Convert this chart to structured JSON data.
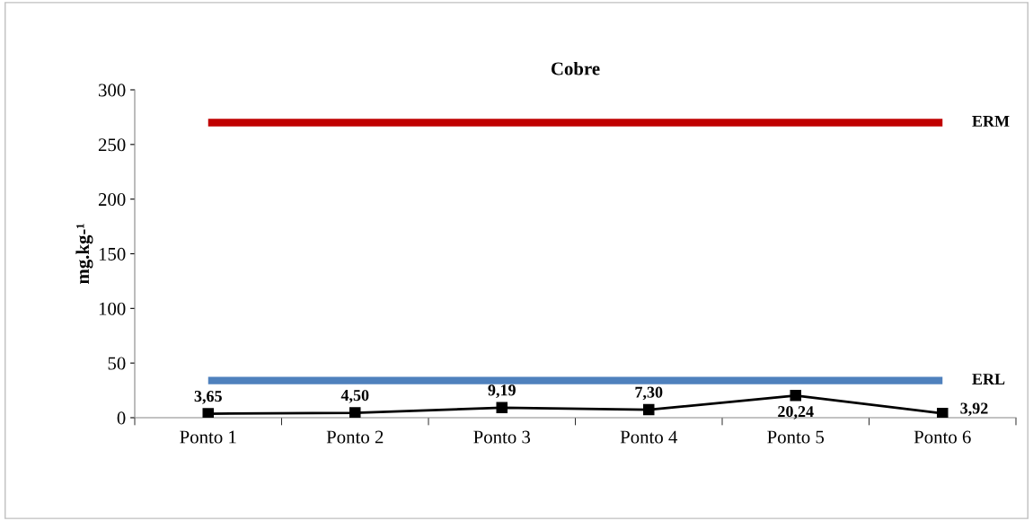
{
  "chart_data": {
    "type": "line",
    "title": "Cobre",
    "ylabel": "mg.kg-¹",
    "categories": [
      "Ponto 1",
      "Ponto 2",
      "Ponto 3",
      "Ponto 4",
      "Ponto 5",
      "Ponto 6"
    ],
    "series": [
      {
        "color": "#000000",
        "values": [
          3.65,
          4.5,
          9.19,
          7.3,
          20.24,
          3.92
        ],
        "value_labels": [
          "3,65",
          "4,50",
          "9,19",
          "7,30",
          "20,24",
          "3,92"
        ]
      }
    ],
    "ref_lines": [
      {
        "axis": "y",
        "value": 270,
        "label": "ERM",
        "color": "#c00000"
      },
      {
        "axis": "y",
        "value": 34,
        "label": "ERL",
        "color": "#4f81bd"
      }
    ],
    "ylim": [
      0,
      300
    ],
    "yticks": [
      0,
      50,
      100,
      150,
      200,
      250,
      300
    ],
    "marker": "square",
    "line_style": "solid",
    "grid": false,
    "legend": false
  }
}
